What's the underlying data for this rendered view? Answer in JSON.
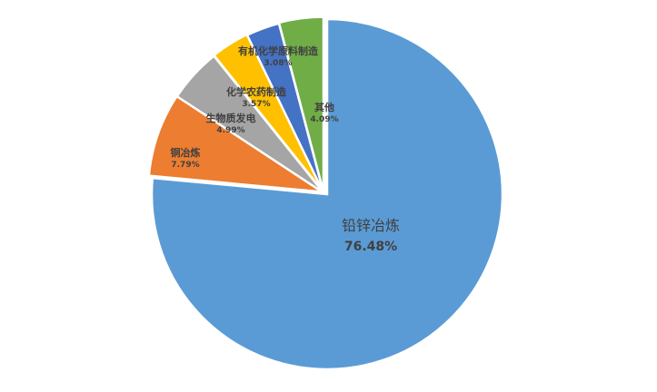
{
  "chart_data": {
    "type": "pie",
    "title": "",
    "categories": [
      "铅锌冶炼",
      "铜冶炼",
      "生物质发电",
      "化学农药制造",
      "有机化学原料制造",
      "其他"
    ],
    "values": [
      76.48,
      7.79,
      4.99,
      3.57,
      3.08,
      4.09
    ],
    "value_labels": [
      "76.48%",
      "7.79%",
      "4.99%",
      "3.57%",
      "3.08%",
      "4.09%"
    ],
    "colors": [
      "#5B9BD5",
      "#ED7D31",
      "#A5A5A5",
      "#FFC000",
      "#4472C4",
      "#70AD47"
    ],
    "start_angle_deg": 0,
    "direction": "clockwise",
    "legend": "none"
  }
}
